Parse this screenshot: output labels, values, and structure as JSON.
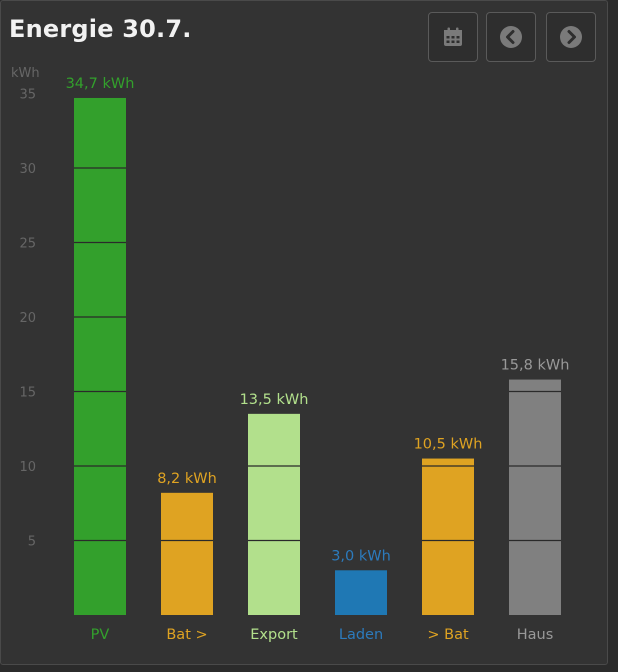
{
  "header": {
    "title": "Energie 30.7."
  },
  "icons": {
    "calendar": "calendar-icon",
    "prev": "chevron-left-circle-icon",
    "next": "chevron-right-circle-icon"
  },
  "chart_data": {
    "type": "bar",
    "yunit": "kWh",
    "ylim": [
      0,
      35
    ],
    "yticks": [
      5,
      10,
      15,
      20,
      25,
      30,
      35
    ],
    "grid": false,
    "categories": [
      "PV",
      "Bat >",
      "Export",
      "Laden",
      "> Bat",
      "Haus"
    ],
    "values": [
      34.7,
      8.2,
      13.5,
      3.0,
      10.5,
      15.8
    ],
    "value_labels": [
      "34,7 kWh",
      "8,2 kWh",
      "13,5 kWh",
      "3,0 kWh",
      "10,5 kWh",
      "15,8 kWh"
    ],
    "colors": [
      "#33a02c",
      "#dfa322",
      "#b2e08c",
      "#1f78b4",
      "#dfa322",
      "#808080"
    ],
    "label_colors": [
      "#33a02c",
      "#dfa322",
      "#b2e08c",
      "#2c7bbd",
      "#dfa322",
      "#999999"
    ]
  }
}
